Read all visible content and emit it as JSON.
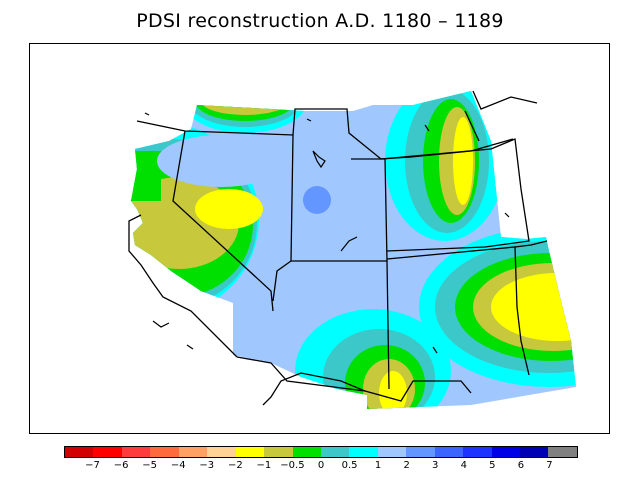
{
  "title": "PDSI reconstruction A.D. 1180 – 1189",
  "colors": {
    "background": "#ffffff",
    "frame": "#000000",
    "boundary": "#000000"
  },
  "map": {
    "variable": "PDSI",
    "region": "western United States",
    "shaded_levels": [
      {
        "range": "-1 to -0.5",
        "color": "#c8c83c"
      },
      {
        "range": "-2 to -1",
        "color": "#ffff00"
      },
      {
        "range": "-0.5 to 0",
        "color": "#00e000"
      },
      {
        "range": "0 to 0.5",
        "color": "#3cc8c8"
      },
      {
        "range": "0.5 to 1",
        "color": "#00ffff"
      },
      {
        "range": "1 to 2",
        "color": "#a0c8ff"
      },
      {
        "range": "2 to 3",
        "color": "#6496ff"
      }
    ]
  },
  "legend": {
    "swatches": [
      {
        "color": "#d20000"
      },
      {
        "color": "#ff0000"
      },
      {
        "color": "#ff3c3c"
      },
      {
        "color": "#ff6a3c"
      },
      {
        "color": "#ffa064"
      },
      {
        "color": "#ffd296"
      },
      {
        "color": "#ffff00"
      },
      {
        "color": "#c8c83c"
      },
      {
        "color": "#00e000"
      },
      {
        "color": "#3cc8c8"
      },
      {
        "color": "#00ffff"
      },
      {
        "color": "#a0c8ff"
      },
      {
        "color": "#6496ff"
      },
      {
        "color": "#3c64ff"
      },
      {
        "color": "#1e32ff"
      },
      {
        "color": "#0000e6"
      },
      {
        "color": "#0000b4"
      },
      {
        "color": "#808080"
      }
    ],
    "labels": [
      "−7",
      "−6",
      "−5",
      "−4",
      "−3",
      "−2",
      "−1",
      "−0.5",
      "0",
      "0.5",
      "1",
      "2",
      "3",
      "4",
      "5",
      "6",
      "7"
    ]
  }
}
